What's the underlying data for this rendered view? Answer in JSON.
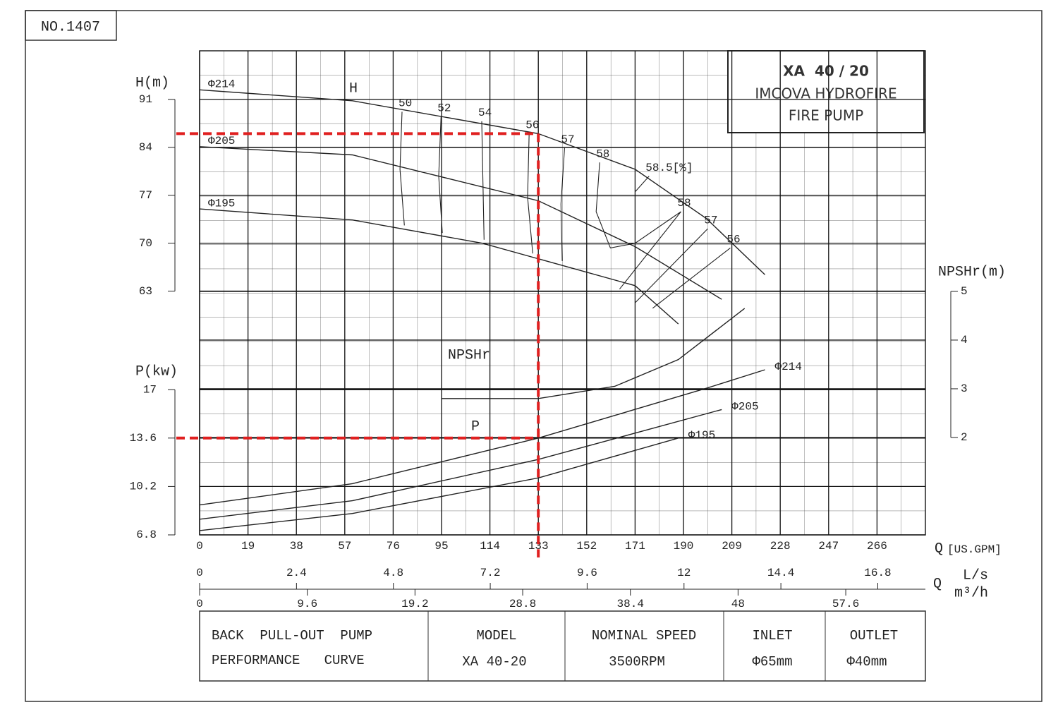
{
  "header": {
    "number": "NO.1407",
    "model": "XA  40 / 20",
    "maker": "IMCOVA HYDROFIRE",
    "product": "FIRE PUMP"
  },
  "table": {
    "cells": [
      [
        "BACK  PULL-OUT  PUMP",
        "PERFORMANCE   CURVE"
      ],
      [
        "MODEL",
        "XA 40-20"
      ],
      [
        "NOMINAL SPEED",
        "3500RPM"
      ],
      [
        "INLET",
        "Φ65mm"
      ],
      [
        "OUTLET",
        "Φ40mm"
      ]
    ]
  },
  "chart_data": {
    "type": "line",
    "xlabel": "Q",
    "xunit": "[US.GPM]",
    "xlim": [
      0,
      285
    ],
    "xticks": [
      0,
      19,
      38,
      57,
      76,
      95,
      114,
      133,
      152,
      171,
      190,
      209,
      228,
      247,
      266
    ],
    "x2label": "L/s",
    "x2lim": [
      0,
      17.98
    ],
    "x2ticks": [
      0,
      2.4,
      4.8,
      7.2,
      9.6,
      12,
      14.4,
      16.8
    ],
    "x3label": "m³/h",
    "x3lim": [
      0,
      64.7
    ],
    "x3ticks": [
      0,
      9.6,
      19.2,
      28.8,
      38.4,
      48,
      57.6
    ],
    "ylabel": "H(m)",
    "ylim": [
      27.4,
      98.1
    ],
    "yticks": [
      63,
      70,
      77,
      84,
      91
    ],
    "y2label": "P(kw)",
    "y2lim": [
      6.8,
      40.8
    ],
    "y2ticks": [
      6.8,
      10.2,
      13.6,
      17
    ],
    "y3label": "NPSHr(m)",
    "y3lim": [
      0,
      9.94
    ],
    "y3ticks": [
      2,
      3,
      4,
      5
    ],
    "grid": true,
    "curves": [
      {
        "label": "H",
        "axis": "y",
        "series": [
          {
            "name": "Φ214",
            "color": "#222222",
            "x": [
              0,
              60,
              133,
              171,
              199,
              222
            ],
            "values": [
              92.4,
              90.8,
              86,
              80.8,
              73.6,
              65.4
            ]
          },
          {
            "name": "Φ205",
            "color": "#222222",
            "x": [
              0,
              60,
              133,
              171,
              205
            ],
            "values": [
              84.1,
              82.9,
              76.2,
              69.5,
              61.8
            ]
          },
          {
            "name": "Φ195",
            "color": "#222222",
            "x": [
              0,
              60,
              111,
              171,
              188
            ],
            "values": [
              75,
              73.4,
              70,
              63.8,
              58.2
            ]
          }
        ]
      },
      {
        "label": "P",
        "axis": "y2",
        "series": [
          {
            "name": "Φ214",
            "color": "#222222",
            "x": [
              0,
              60,
              133,
              199,
              222
            ],
            "values": [
              8.9,
              10.4,
              13.6,
              17.1,
              18.4
            ]
          },
          {
            "name": "Φ205",
            "color": "#222222",
            "x": [
              0,
              60,
              133,
              205
            ],
            "values": [
              7.9,
              9.2,
              12.1,
              15.6
            ]
          },
          {
            "name": "Φ195",
            "color": "#222222",
            "x": [
              0,
              60,
              133,
              188
            ],
            "values": [
              7.1,
              8.3,
              10.8,
              13.6
            ]
          }
        ]
      },
      {
        "label": "NPSHr",
        "axis": "y3",
        "series": [
          {
            "color": "#222222",
            "x": [
              95,
              133,
              163,
              188,
              214
            ],
            "values": [
              2.8,
              2.8,
              3.05,
              3.6,
              4.65
            ]
          }
        ]
      }
    ],
    "efficiency": [
      {
        "label": "50",
        "x": [
          79.5,
          78.7,
          80.4
        ],
        "values": [
          89.2,
          80.8,
          72.6
        ]
      },
      {
        "label": "52",
        "x": [
          94.8,
          93.9,
          95.3
        ],
        "values": [
          88.5,
          79.8,
          71.5
        ]
      },
      {
        "label": "54",
        "x": [
          110.8,
          111.7
        ],
        "values": [
          87.8,
          70.5
        ]
      },
      {
        "label": "56",
        "x": [
          129.4,
          128.8,
          130.8
        ],
        "values": [
          86,
          76.7,
          68.5
        ]
      },
      {
        "label": "57",
        "x": [
          143.3,
          141.9,
          142.4
        ],
        "values": [
          83.9,
          75.7,
          67.4
        ]
      },
      {
        "label": "58",
        "x": [
          157.1,
          155.7,
          161.3,
          171,
          189
        ],
        "values": [
          81.8,
          74.6,
          69.3,
          70,
          74.6
        ]
      },
      {
        "label": "58.5[%]",
        "x": [
          176.5,
          171
        ],
        "values": [
          79.8,
          77.5
        ]
      },
      {
        "label": "58",
        "x": [
          189,
          164.9
        ],
        "values": [
          74.6,
          63.3
        ]
      },
      {
        "label": "57",
        "x": [
          199.5,
          171
        ],
        "values": [
          72.1,
          61.3
        ]
      },
      {
        "label": "56",
        "x": [
          208.4,
          177.9
        ],
        "values": [
          69.3,
          60.5
        ]
      }
    ],
    "duty_point": {
      "x": 133,
      "y": 86,
      "y2": 13.6,
      "color": "#e02020"
    }
  }
}
